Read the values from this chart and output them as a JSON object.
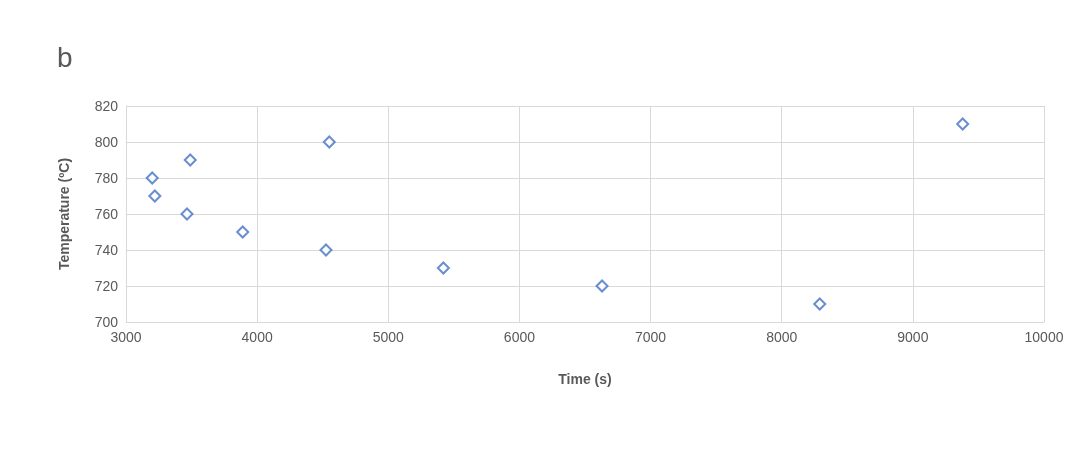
{
  "chart_data": {
    "type": "scatter",
    "title": "b",
    "xlabel": "Time (s)",
    "ylabel": "Temperature (ºC)",
    "x": [
      3200,
      3220,
      3490,
      3465,
      3890,
      4550,
      4525,
      5420,
      6630,
      8290,
      9380
    ],
    "series": [
      {
        "color": "#4472c4",
        "values": [
          780,
          770,
          790,
          760,
          750,
          800,
          740,
          730,
          720,
          710,
          810
        ]
      }
    ],
    "xlim": [
      3000,
      10000
    ],
    "xticks": [
      3000,
      4000,
      5000,
      6000,
      7000,
      8000,
      9000,
      10000
    ],
    "ylim": [
      700,
      820
    ],
    "yticks": [
      700,
      720,
      740,
      760,
      780,
      800,
      820
    ],
    "grid": true,
    "marker": "diamond"
  }
}
